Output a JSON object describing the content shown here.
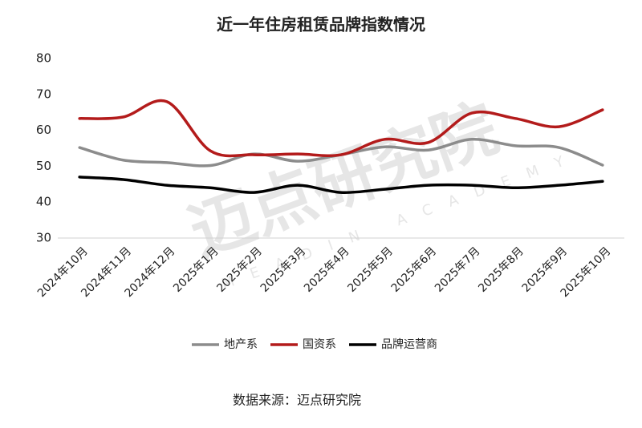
{
  "chart_data": {
    "type": "line",
    "title": "近一年住房租赁品牌指数情况",
    "categories": [
      "2024年10月",
      "2024年11月",
      "2024年12月",
      "2025年1月",
      "2025年2月",
      "2025年3月",
      "2025年4月",
      "2025年5月",
      "2025年6月",
      "2025年7月",
      "2025年8月",
      "2025年9月",
      "2025年10月"
    ],
    "series": [
      {
        "name": "地产系",
        "color": "#8c8c8c",
        "values": [
          55.2,
          51.7,
          51,
          50.2,
          53.4,
          51.4,
          53.2,
          55.4,
          54.5,
          57.5,
          55.7,
          55.2,
          50.3
        ]
      },
      {
        "name": "国资系",
        "color": "#b31b1b",
        "values": [
          63.3,
          63.7,
          68,
          54.3,
          53.2,
          53.4,
          53.2,
          57.5,
          56.6,
          64.8,
          63.3,
          61,
          65.7
        ]
      },
      {
        "name": "品牌运营商",
        "color": "#000000",
        "values": [
          47,
          46.3,
          44.7,
          44,
          42.7,
          44.7,
          42.7,
          43.6,
          44.7,
          44.7,
          44,
          44.7,
          45.8
        ]
      }
    ],
    "ylim": [
      30,
      80
    ],
    "yticks": [
      30,
      40,
      50,
      60,
      70,
      80
    ],
    "legend": "bottom",
    "source": "数据来源：迈点研究院",
    "watermark": "迈点研究院",
    "watermark_subtitle": "MEADIN ACADEMY"
  }
}
